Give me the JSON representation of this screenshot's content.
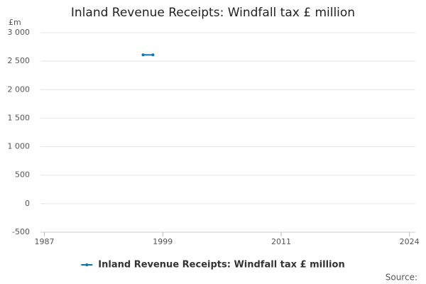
{
  "chart_data": {
    "type": "line",
    "title": "Inland Revenue Receipts: Windfall tax £ million",
    "y_unit": "£m",
    "x": [
      1997,
      1998
    ],
    "series": [
      {
        "name": "Inland Revenue Receipts: Windfall tax £ million",
        "color": "#0b72b5",
        "values": [
          2610,
          2610
        ]
      }
    ],
    "xlim": [
      1986.6,
      2024.6
    ],
    "xticks": [
      1987,
      1999,
      2011,
      2024
    ],
    "ylim": [
      -500,
      3000
    ],
    "yticks": [
      {
        "value": -500,
        "label": "-500"
      },
      0,
      500,
      {
        "value": 1000,
        "label": "1 000"
      },
      {
        "value": 1500,
        "label": "1 500"
      },
      {
        "value": 2000,
        "label": "2 000"
      },
      {
        "value": 2500,
        "label": "2 500"
      },
      {
        "value": 3000,
        "label": "3 000"
      }
    ],
    "grid": true,
    "legend": "bottom",
    "source": "Source:"
  }
}
